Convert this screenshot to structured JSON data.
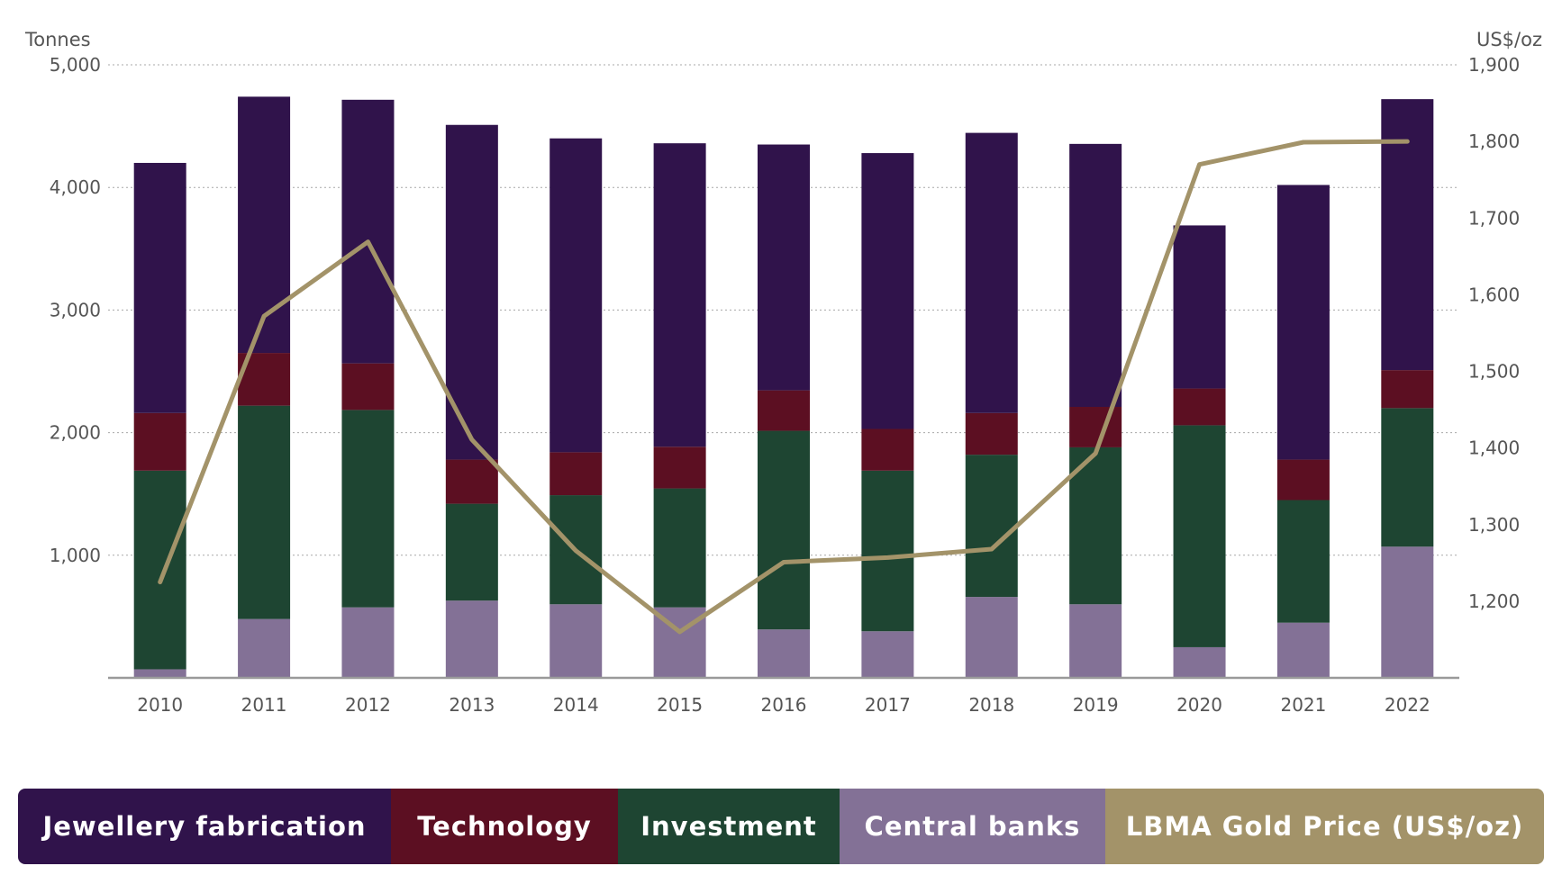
{
  "chart_data": {
    "type": "bar",
    "stacked": true,
    "categories": [
      "2010",
      "2011",
      "2012",
      "2013",
      "2014",
      "2015",
      "2016",
      "2017",
      "2018",
      "2019",
      "2020",
      "2021",
      "2022"
    ],
    "left_axis": {
      "unit_label": "Tonnes",
      "ylim": [
        0,
        5000
      ],
      "ticks": [
        1000,
        2000,
        3000,
        4000,
        5000
      ],
      "tick_labels": [
        "1,000",
        "2,000",
        "3,000",
        "4,000",
        "5,000"
      ]
    },
    "right_axis": {
      "unit_label": "US$/oz",
      "ylim": [
        1100,
        1900
      ],
      "ticks": [
        1200,
        1300,
        1400,
        1500,
        1600,
        1700,
        1800,
        1900
      ],
      "tick_labels": [
        "1,200",
        "1,300",
        "1,400",
        "1,500",
        "1,600",
        "1,700",
        "1,800",
        "1,900"
      ]
    },
    "series": [
      {
        "name": "Central banks",
        "axis": "left",
        "color": "#837196",
        "values": [
          70,
          480,
          575,
          630,
          600,
          575,
          395,
          380,
          660,
          600,
          250,
          450,
          1070
        ]
      },
      {
        "name": "Investment",
        "axis": "left",
        "color": "#1e4532",
        "values": [
          1620,
          1740,
          1610,
          790,
          890,
          970,
          1620,
          1310,
          1160,
          1280,
          1810,
          1000,
          1130
        ]
      },
      {
        "name": "Technology",
        "axis": "left",
        "color": "#5c0f22",
        "values": [
          470,
          430,
          380,
          360,
          350,
          340,
          330,
          340,
          340,
          330,
          300,
          330,
          310
        ]
      },
      {
        "name": "Jewellery fabrication",
        "axis": "left",
        "color": "#30134b",
        "values": [
          2040,
          2090,
          2150,
          2730,
          2560,
          2475,
          2005,
          2250,
          2285,
          2145,
          1330,
          2240,
          2210
        ]
      },
      {
        "name": "LBMA Gold Price (US$/oz)",
        "axis": "right",
        "type": "line",
        "color": "#a39369",
        "values": [
          1225,
          1572,
          1669,
          1411,
          1266,
          1160,
          1251,
          1257,
          1268,
          1393,
          1770,
          1799,
          1800
        ]
      }
    ],
    "grid": true,
    "legend_placement": "bottom"
  },
  "legend": [
    {
      "label": "Jewellery fabrication",
      "color": "#30134b"
    },
    {
      "label": "Technology",
      "color": "#5c0f22"
    },
    {
      "label": "Investment",
      "color": "#1e4532"
    },
    {
      "label": "Central banks",
      "color": "#837196"
    },
    {
      "label": "LBMA Gold Price (US$/oz)",
      "color": "#a39369"
    }
  ]
}
